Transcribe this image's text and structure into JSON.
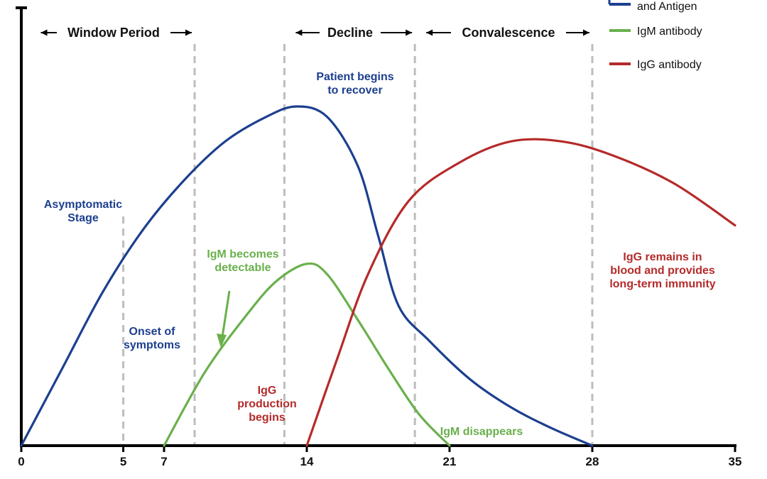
{
  "chart_data": {
    "type": "line",
    "x_ticks": [
      0,
      5,
      7,
      14,
      21,
      28,
      35
    ],
    "xlim": [
      0,
      35
    ],
    "ylim": [
      0,
      100
    ],
    "grid": false,
    "legend_position": "top-right",
    "series": [
      {
        "name": "and Antigen",
        "color": "#1c3f8f",
        "points": [
          [
            0,
            0
          ],
          [
            2,
            22
          ],
          [
            4,
            44
          ],
          [
            6,
            62
          ],
          [
            8,
            76
          ],
          [
            10,
            87
          ],
          [
            12,
            94
          ],
          [
            13.5,
            97
          ],
          [
            15,
            94
          ],
          [
            16.5,
            80
          ],
          [
            17.5,
            60
          ],
          [
            18.5,
            40
          ],
          [
            20,
            30
          ],
          [
            22,
            19
          ],
          [
            24,
            11
          ],
          [
            26,
            5
          ],
          [
            28,
            0
          ]
        ]
      },
      {
        "name": "IgM antibody",
        "color": "#6ab04c",
        "points": [
          [
            7,
            0
          ],
          [
            9,
            21
          ],
          [
            11,
            37
          ],
          [
            12.5,
            47
          ],
          [
            14,
            52
          ],
          [
            15,
            49
          ],
          [
            16.5,
            36
          ],
          [
            18,
            22
          ],
          [
            19.5,
            9
          ],
          [
            21,
            0
          ]
        ]
      },
      {
        "name": "IgG antibody",
        "color": "#b52a2a",
        "points": [
          [
            14,
            0
          ],
          [
            15.5,
            25
          ],
          [
            17,
            49
          ],
          [
            19,
            70
          ],
          [
            21.5,
            81
          ],
          [
            24,
            87
          ],
          [
            26.5,
            87
          ],
          [
            29,
            83
          ],
          [
            32,
            75
          ],
          [
            35,
            63
          ]
        ]
      }
    ],
    "phase_lines_x": [
      5,
      8.5,
      12.9,
      19.3,
      28
    ],
    "phases": [
      {
        "label": "Window Period",
        "x_from": 0.4,
        "x_to": 8.5
      },
      {
        "label": "Decline",
        "x_from": 12.9,
        "x_to": 19.3
      },
      {
        "label": "Convalescence",
        "x_from": 19.3,
        "x_to": 28
      }
    ],
    "annotations": [
      {
        "id": "asymptomatic",
        "lines": [
          "Asymptomatic",
          "Stage"
        ],
        "color": "#1c3f8f"
      },
      {
        "id": "onset",
        "lines": [
          "Onset of",
          "symptoms"
        ],
        "color": "#1c3f8f"
      },
      {
        "id": "recover",
        "lines": [
          "Patient begins",
          "to recover"
        ],
        "color": "#1c3f8f"
      },
      {
        "id": "igm_detect",
        "lines": [
          "IgM becomes",
          "detectable"
        ],
        "color": "#6ab04c"
      },
      {
        "id": "igg_begins",
        "lines": [
          "IgG",
          "production",
          "begins"
        ],
        "color": "#b52a2a"
      },
      {
        "id": "igm_disappears",
        "lines": [
          "IgM disappears"
        ],
        "color": "#6ab04c"
      },
      {
        "id": "igg_remains",
        "lines": [
          "IgG remains in",
          "blood and provides",
          "long-term immunity"
        ],
        "color": "#b52a2a"
      }
    ],
    "legend": [
      {
        "label": "and Antigen",
        "color": "#1c3f8f"
      },
      {
        "label": "IgM antibody",
        "color": "#6ab04c"
      },
      {
        "label": "IgG antibody",
        "color": "#b52a2a"
      }
    ]
  }
}
